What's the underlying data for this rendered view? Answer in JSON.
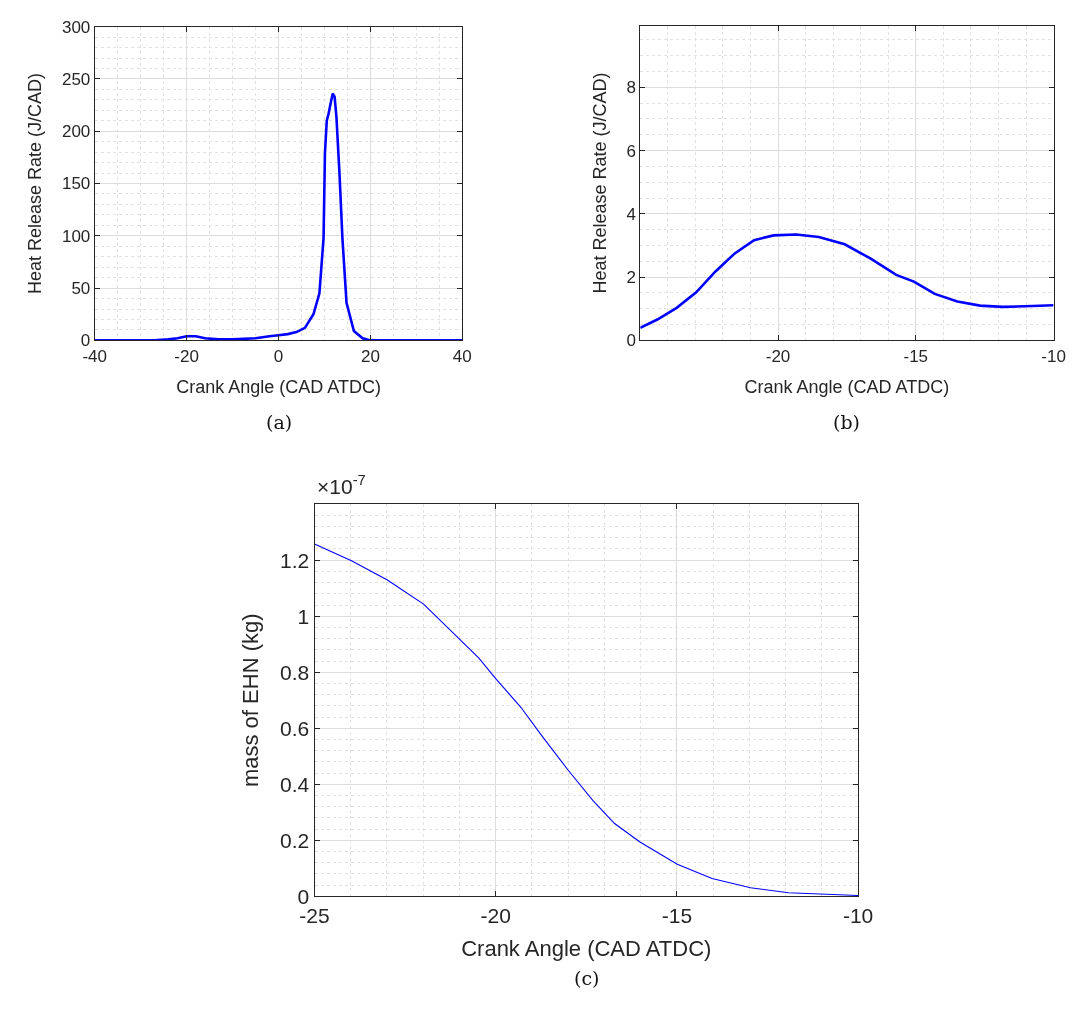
{
  "chart_data": [
    {
      "type": "line",
      "xlabel": "Crank Angle (CAD ATDC)",
      "ylabel": "Heat Release Rate (J/CAD)",
      "annotations": [
        "(a)"
      ],
      "xlim": [
        -40,
        40
      ],
      "ylim": [
        0,
        300
      ],
      "xticks": [
        -40,
        -20,
        0,
        20,
        40
      ],
      "yticks": [
        0,
        50,
        100,
        150,
        200,
        250,
        300
      ],
      "grid": true,
      "series": [
        {
          "color": "#0000ff",
          "x": [
            -40,
            -30,
            -27,
            -24,
            -22,
            -20,
            -18,
            -16,
            -13,
            -10,
            -5,
            -2,
            0,
            2,
            3.9,
            5.75,
            7.6,
            8.9,
            9.8,
            10.1,
            10.5,
            10.9,
            11.4,
            11.8,
            12.2,
            12.6,
            13.25,
            13.9,
            14.8,
            16.4,
            18.3,
            20,
            25,
            30,
            40
          ],
          "values": [
            0,
            0,
            0,
            1,
            2,
            4,
            4,
            2,
            1,
            1,
            2,
            4,
            5,
            6,
            8,
            12,
            25,
            45,
            98,
            179,
            210,
            217,
            228,
            236,
            233,
            214,
            161,
            98,
            36,
            9,
            2,
            0,
            0,
            0,
            0
          ]
        }
      ]
    },
    {
      "type": "line",
      "xlabel": "Crank Angle (CAD ATDC)",
      "ylabel": "Heat Release Rate (J/CAD)",
      "annotations": [
        "(b)"
      ],
      "xlim": [
        -25,
        -10
      ],
      "ylim": [
        0,
        9.95
      ],
      "xticks": [
        -20,
        -15,
        -10
      ],
      "yticks": [
        0,
        2,
        4,
        6,
        8
      ],
      "grid": true,
      "series": [
        {
          "color": "#0000ff",
          "x": [
            -25,
            -24.38,
            -23.68,
            -22.97,
            -22.27,
            -21.57,
            -20.87,
            -20.16,
            -19.34,
            -18.52,
            -17.58,
            -16.65,
            -15.71,
            -15.07,
            -14.31,
            -13.49,
            -12.67,
            -11.85,
            -11.03,
            -10
          ],
          "values": [
            0.4,
            0.66,
            1.03,
            1.52,
            2.18,
            2.75,
            3.17,
            3.32,
            3.35,
            3.27,
            3.04,
            2.59,
            2.07,
            1.86,
            1.47,
            1.23,
            1.1,
            1.06,
            1.08,
            1.11
          ]
        }
      ]
    },
    {
      "type": "line",
      "xlabel": "Crank Angle (CAD ATDC)",
      "ylabel": "mass of EHN (kg)",
      "annotations": [
        "(c)",
        "×10$^{-7}$"
      ],
      "xlim": [
        -25,
        -10
      ],
      "ylim": [
        0,
        1.4
      ],
      "xticks": [
        -25,
        -20,
        -15,
        -10
      ],
      "yticks": [
        0,
        0.2,
        0.4,
        0.6,
        0.8,
        1,
        1.2
      ],
      "grid": true,
      "series": [
        {
          "color": "#0000ff",
          "x": [
            -25,
            -23.98,
            -22.99,
            -21.99,
            -21.29,
            -20.47,
            -20,
            -19.3,
            -18.71,
            -18.01,
            -17.31,
            -16.72,
            -16.02,
            -14.99,
            -14.03,
            -12.97,
            -11.92,
            -10
          ],
          "values": [
            1.258,
            1.198,
            1.129,
            1.043,
            0.955,
            0.851,
            0.777,
            0.674,
            0.57,
            0.452,
            0.341,
            0.26,
            0.194,
            0.115,
            0.064,
            0.031,
            0.013,
            0.003
          ]
        }
      ]
    }
  ]
}
